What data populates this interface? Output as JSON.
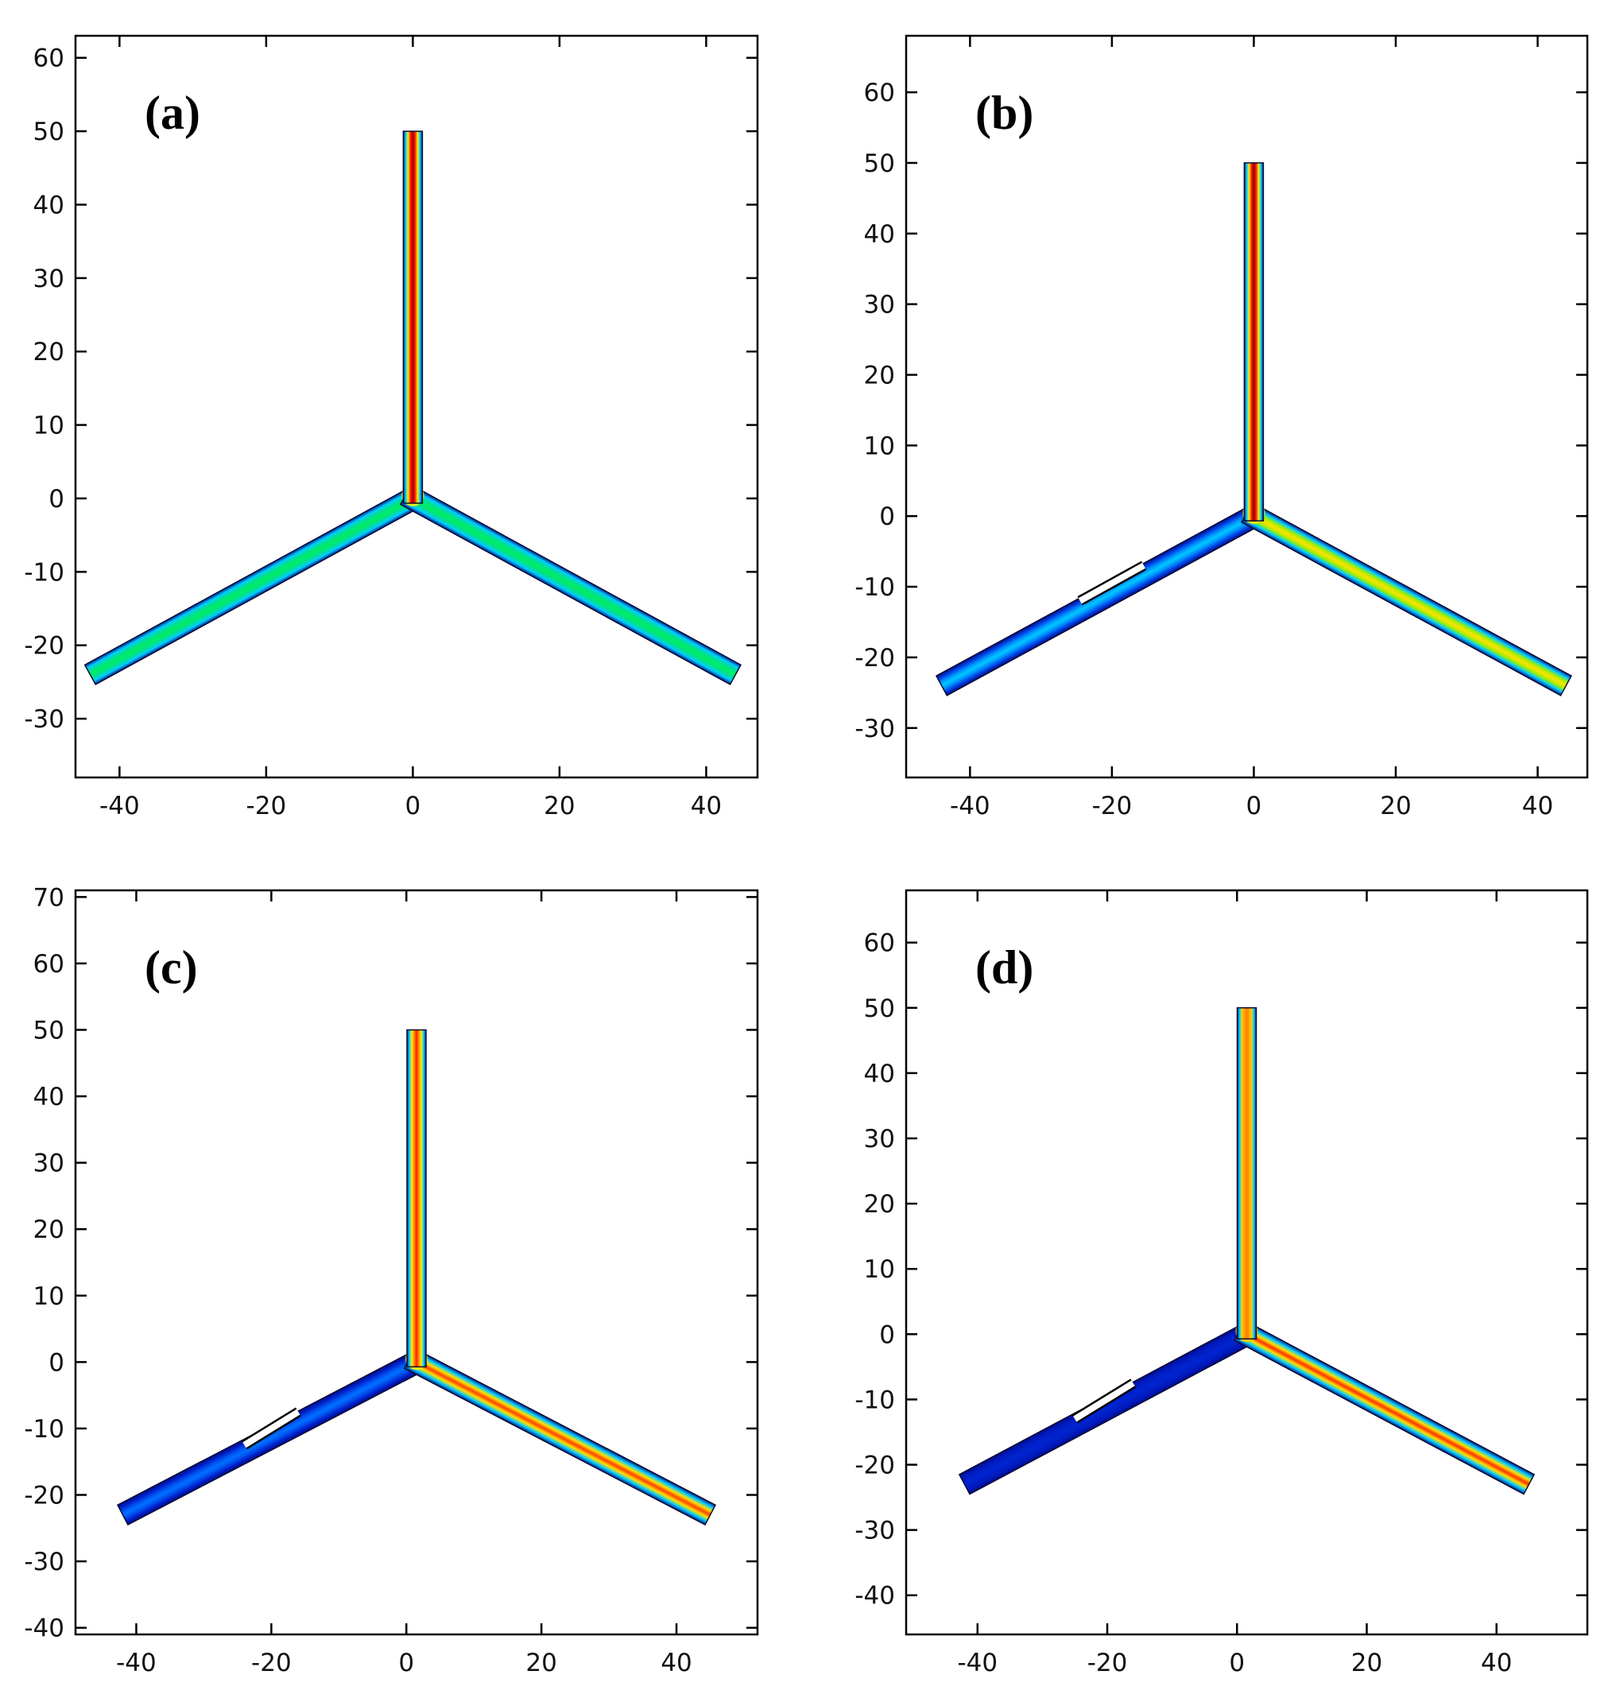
{
  "chart_data": [
    {
      "type": "heatmap",
      "panel_label": "(a)",
      "xlim": [
        -46,
        47
      ],
      "ylim": [
        -38,
        63
      ],
      "xticks": [
        -40,
        -20,
        0,
        20,
        40
      ],
      "yticks": [
        60,
        50,
        40,
        30,
        20,
        10,
        0,
        -10,
        -20,
        -30
      ],
      "tick_labels_x": [
        "-40",
        "-20",
        "0",
        "20",
        "40"
      ],
      "tick_labels_y": [
        "60",
        "50",
        "40",
        "30",
        "20",
        "10",
        "0",
        "-10",
        "-20",
        "-30"
      ],
      "geometry": {
        "stem_top": [
          0,
          50
        ],
        "junction": [
          0,
          0
        ],
        "left_end": [
          -44,
          -24
        ],
        "right_end": [
          44,
          -24
        ]
      },
      "branches": [
        {
          "name": "stem",
          "colors": [
            "#001a8f",
            "#00d0ff",
            "#ffee00",
            "#ff2000",
            "#a00000",
            "#ff2000",
            "#ffee00",
            "#00d0ff",
            "#001a8f"
          ]
        },
        {
          "name": "left",
          "colors": [
            "#001a8f",
            "#00ccff",
            "#00e090",
            "#00ee60",
            "#00e090",
            "#00ccff",
            "#001a8f"
          ]
        },
        {
          "name": "right",
          "colors": [
            "#001a8f",
            "#00ccff",
            "#00e090",
            "#00ee60",
            "#00e090",
            "#00ccff",
            "#001a8f"
          ]
        }
      ],
      "obstacle": null
    },
    {
      "type": "heatmap",
      "panel_label": "(b)",
      "xlim": [
        -49,
        47
      ],
      "ylim": [
        -37,
        68
      ],
      "xticks": [
        -40,
        -20,
        0,
        20,
        40
      ],
      "yticks": [
        60,
        50,
        40,
        30,
        20,
        10,
        0,
        -10,
        -20,
        -30
      ],
      "tick_labels_x": [
        "-40",
        "-20",
        "0",
        "20",
        "40"
      ],
      "tick_labels_y": [
        "60",
        "50",
        "40",
        "30",
        "20",
        "10",
        "0",
        "-10",
        "-20",
        "-30"
      ],
      "geometry": {
        "stem_top": [
          0,
          50
        ],
        "junction": [
          0,
          0
        ],
        "left_end": [
          -44,
          -24
        ],
        "right_end": [
          44,
          -24
        ]
      },
      "branches": [
        {
          "name": "stem",
          "colors": [
            "#001a8f",
            "#00d0ff",
            "#ffee00",
            "#ff2000",
            "#900000",
            "#ff2000",
            "#ffee00",
            "#00d0ff",
            "#001a8f"
          ]
        },
        {
          "name": "left",
          "colors": [
            "#000c8a",
            "#0040e0",
            "#0090ff",
            "#00c8ff",
            "#0090ff",
            "#0040e0",
            "#000c8a"
          ]
        },
        {
          "name": "right",
          "colors": [
            "#001a8f",
            "#00ccff",
            "#a0f000",
            "#ffe000",
            "#a0f000",
            "#00ccff",
            "#001a8f"
          ]
        }
      ],
      "obstacle": {
        "from": [
          -24.5,
          -12
        ],
        "to": [
          -15.5,
          -7
        ]
      }
    },
    {
      "type": "heatmap",
      "panel_label": "(c)",
      "xlim": [
        -49,
        52
      ],
      "ylim": [
        -41,
        71
      ],
      "xticks": [
        -40,
        -20,
        0,
        20,
        40
      ],
      "yticks": [
        70,
        60,
        50,
        40,
        30,
        20,
        10,
        0,
        -10,
        -20,
        -30,
        -40
      ],
      "tick_labels_x": [
        "-40",
        "-20",
        "0",
        "20",
        "40"
      ],
      "tick_labels_y": [
        "70",
        "60",
        "50",
        "40",
        "30",
        "20",
        "10",
        "0",
        "-10",
        "-20",
        "-30",
        "-40"
      ],
      "geometry": {
        "stem_top": [
          1.5,
          50
        ],
        "junction": [
          1.5,
          0
        ],
        "left_end": [
          -42,
          -23
        ],
        "right_end": [
          45,
          -23
        ]
      },
      "branches": [
        {
          "name": "stem",
          "colors": [
            "#001a8f",
            "#00d0ff",
            "#ffee00",
            "#ff9000",
            "#ff2000",
            "#ff9000",
            "#ffee00",
            "#00d0ff",
            "#001a8f"
          ]
        },
        {
          "name": "left",
          "colors": [
            "#000c8a",
            "#0020c8",
            "#0050f0",
            "#0070ff",
            "#0050f0",
            "#0020c8",
            "#000c8a"
          ]
        },
        {
          "name": "right",
          "colors": [
            "#001a8f",
            "#00ccff",
            "#ffe000",
            "#ff4000",
            "#ffe000",
            "#00ccff",
            "#001a8f"
          ]
        }
      ],
      "obstacle": {
        "from": [
          -24,
          -12.5
        ],
        "to": [
          -16,
          -7.5
        ]
      }
    },
    {
      "type": "heatmap",
      "panel_label": "(d)",
      "xlim": [
        -51,
        54
      ],
      "ylim": [
        -46,
        68
      ],
      "xticks": [
        -40,
        -20,
        0,
        20,
        40
      ],
      "yticks": [
        60,
        50,
        40,
        30,
        20,
        10,
        0,
        -10,
        -20,
        -30,
        -40
      ],
      "tick_labels_x": [
        "-40",
        "-20",
        "0",
        "20",
        "40"
      ],
      "tick_labels_y": [
        "60",
        "50",
        "40",
        "30",
        "20",
        "10",
        "0",
        "-10",
        "-20",
        "-30",
        "-40"
      ],
      "geometry": {
        "stem_top": [
          1.5,
          50
        ],
        "junction": [
          1.5,
          0
        ],
        "left_end": [
          -42,
          -23
        ],
        "right_end": [
          45,
          -23
        ]
      },
      "branches": [
        {
          "name": "stem",
          "colors": [
            "#001a8f",
            "#00d0ff",
            "#ffd000",
            "#ffa000",
            "#ff8000",
            "#ffa000",
            "#ffd000",
            "#00d0ff",
            "#001a8f"
          ]
        },
        {
          "name": "left",
          "colors": [
            "#000c8a",
            "#0018b8",
            "#0020c8",
            "#0024d0",
            "#0020c8",
            "#0018b8",
            "#000c8a"
          ]
        },
        {
          "name": "right",
          "colors": [
            "#001a8f",
            "#00ccff",
            "#ffe000",
            "#ff3000",
            "#ffe000",
            "#00ccff",
            "#001a8f"
          ]
        }
      ],
      "obstacle": {
        "from": [
          -25,
          -13
        ],
        "to": [
          -16,
          -7.5
        ]
      }
    }
  ]
}
